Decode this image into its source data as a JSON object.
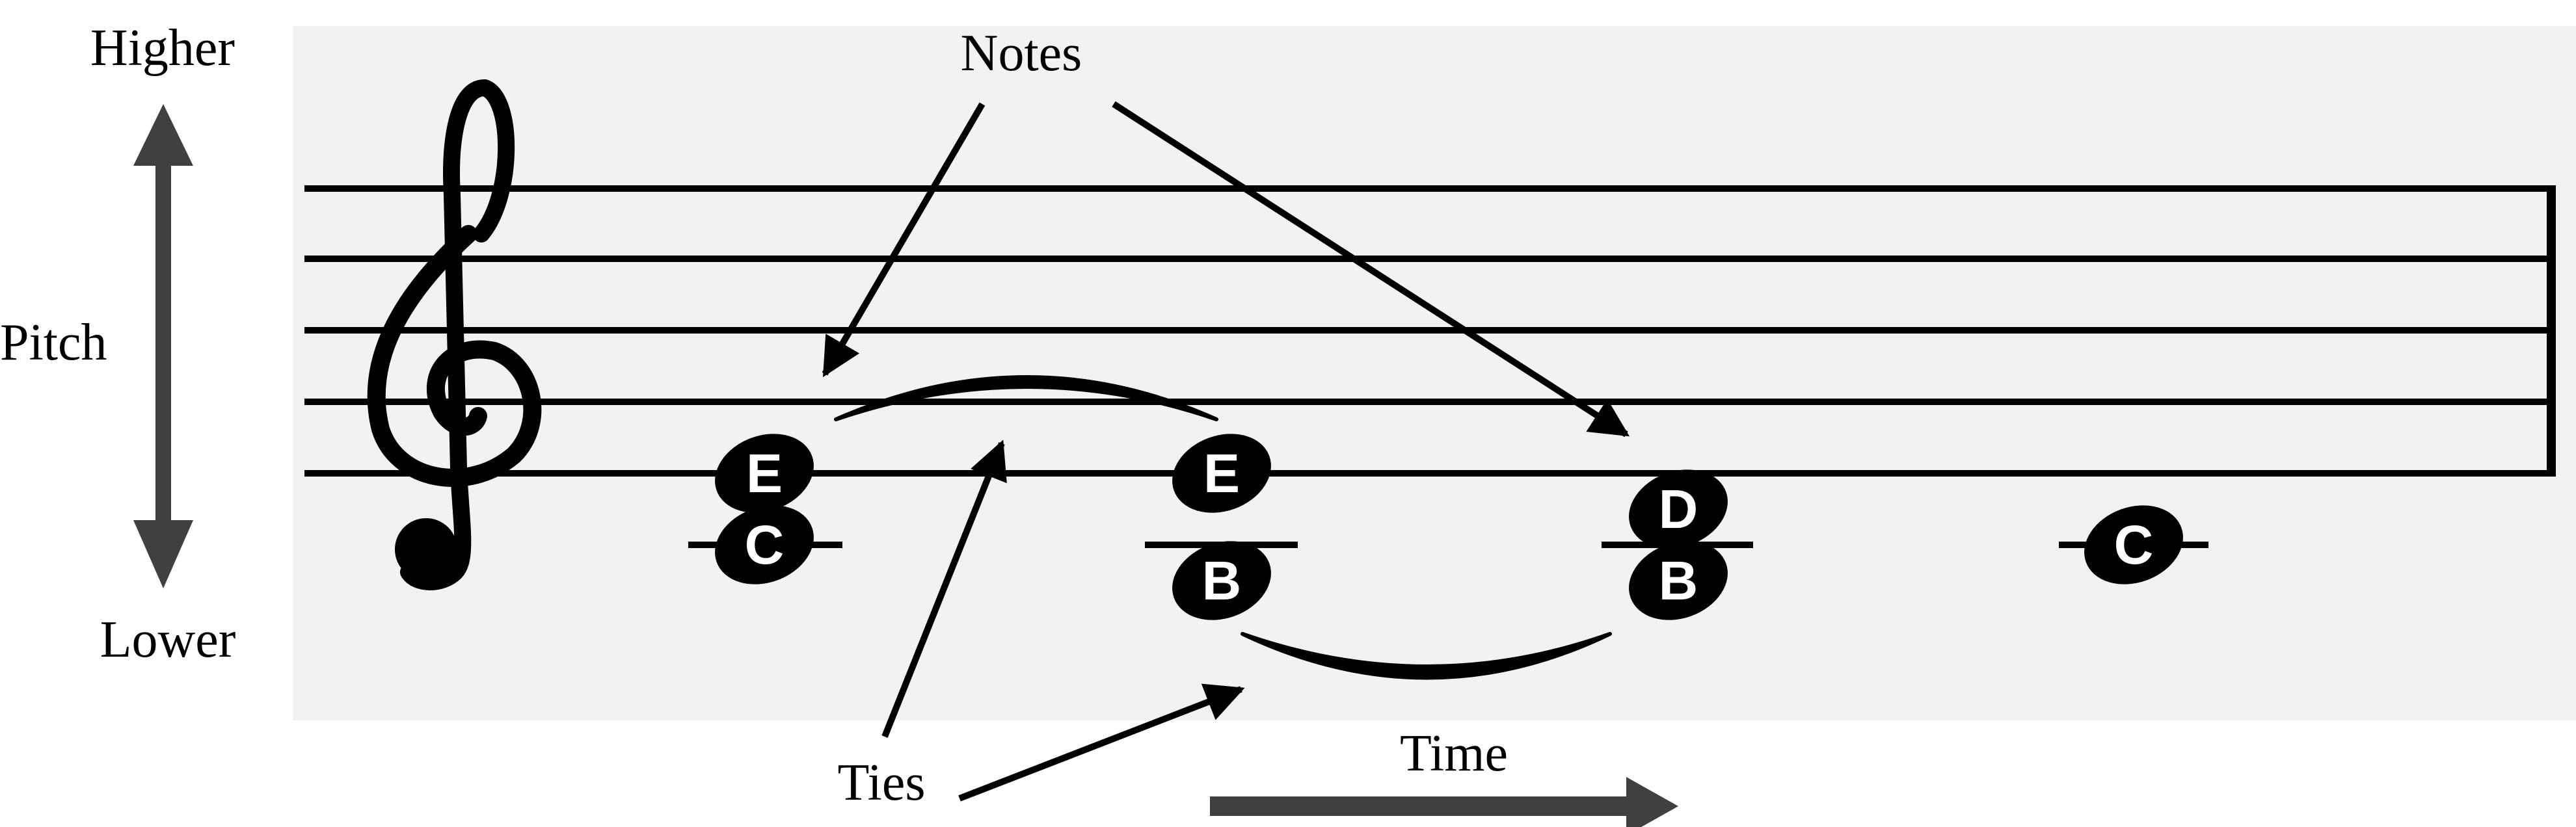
{
  "pitch_axis": {
    "top_label": "Higher",
    "side_label": "Pitch",
    "bottom_label": "Lower"
  },
  "time_axis": {
    "label": "Time"
  },
  "callouts": {
    "notes": "Notes",
    "ties": "Ties"
  },
  "clef": {
    "icon": "treble-clef-icon"
  },
  "notes": {
    "chord1": {
      "upper": "E",
      "lower": "C"
    },
    "chord2": {
      "upper": "E",
      "lower": "B"
    },
    "chord3": {
      "upper": "D",
      "lower": "B"
    },
    "single": {
      "note": "C"
    }
  },
  "colors": {
    "staff_background": "#f2f2f2",
    "ink": "#000000",
    "axis_arrow": "#404040",
    "note_label": "#ffffff"
  }
}
